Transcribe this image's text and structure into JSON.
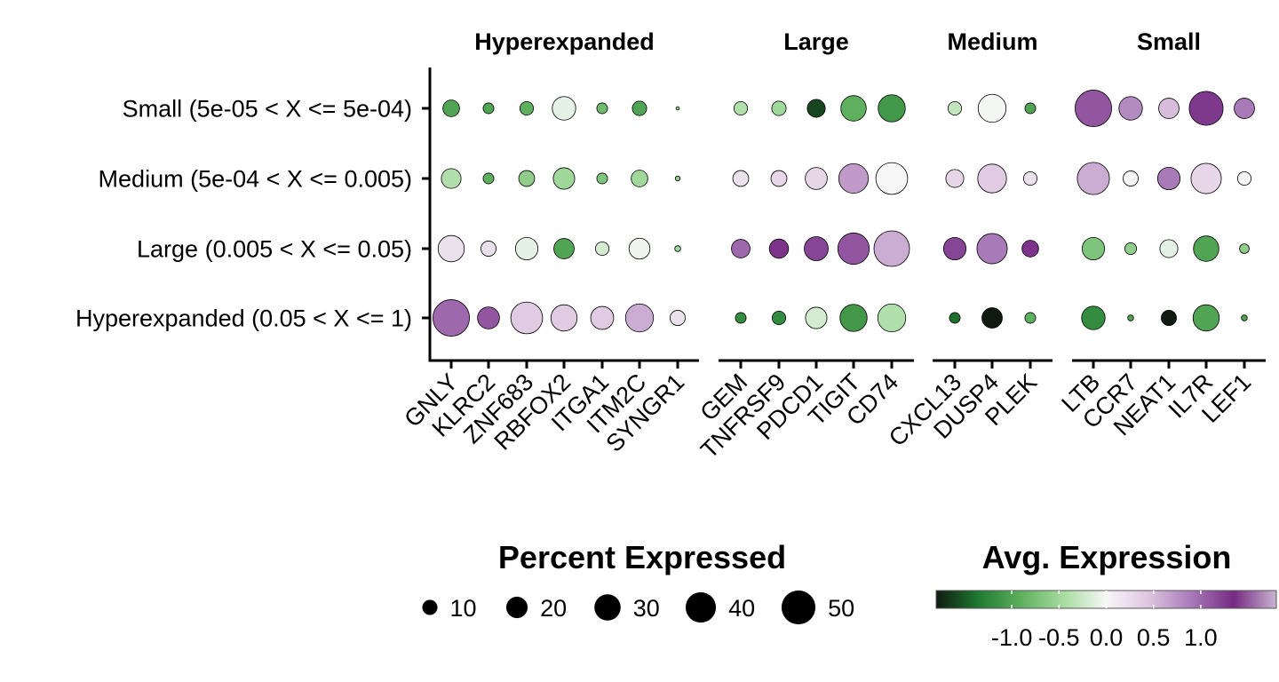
{
  "chart_data": {
    "type": "dotplot",
    "rows": [
      "Small (5e-05 < X <= 5e-04)",
      "Medium (5e-04 < X <= 0.005)",
      "Large (0.005 < X <= 0.05)",
      "Hyperexpanded (0.05 < X <= 1)"
    ],
    "facets": [
      {
        "title": "Hyperexpanded",
        "genes": [
          "GNLY",
          "KLRC2",
          "ZNF683",
          "RBFOX2",
          "ITGA1",
          "ITM2C",
          "SYNGR1"
        ],
        "pct": [
          [
            12,
            5,
            8,
            24,
            5,
            9,
            0.5
          ],
          [
            17,
            5,
            11,
            20,
            5,
            12,
            1
          ],
          [
            30,
            10,
            22,
            18,
            8,
            19,
            1.5
          ],
          [
            58,
            21,
            44,
            30,
            23,
            34,
            10
          ]
        ],
        "avg": [
          [
            -1.0,
            -1.0,
            -0.9,
            -0.1,
            -0.8,
            -1.0,
            -0.6
          ],
          [
            -0.4,
            -0.9,
            -0.6,
            -0.5,
            -0.7,
            -0.5,
            -0.6
          ],
          [
            0.2,
            0.2,
            -0.1,
            -1.0,
            -0.2,
            -0.05,
            -0.5
          ],
          [
            1.0,
            1.1,
            0.4,
            0.4,
            0.4,
            0.6,
            0.2
          ]
        ]
      },
      {
        "title": "Large",
        "genes": [
          "GEM",
          "TNFRSF9",
          "PDCD1",
          "TIGIT",
          "CD74"
        ],
        "pct": [
          [
            8,
            9,
            14,
            28,
            32
          ],
          [
            11,
            11,
            21,
            38,
            44
          ],
          [
            15,
            16,
            25,
            43,
            55
          ],
          [
            5,
            8,
            20,
            32,
            34
          ]
        ],
        "avg": [
          [
            -0.4,
            -0.5,
            -1.6,
            -0.9,
            -1.1
          ],
          [
            0.2,
            0.3,
            0.3,
            0.7,
            0.0
          ],
          [
            1.0,
            1.3,
            1.2,
            1.1,
            0.6
          ],
          [
            -1.2,
            -1.2,
            -0.2,
            -1.1,
            -0.4
          ]
        ]
      },
      {
        "title": "Medium",
        "genes": [
          "CXCL13",
          "DUSP4",
          "PLEK"
        ],
        "pct": [
          [
            8,
            34,
            5
          ],
          [
            14,
            36,
            8
          ],
          [
            22,
            40,
            12
          ],
          [
            5,
            18,
            5
          ]
        ],
        "avg": [
          [
            -0.3,
            -0.02,
            -1.0
          ],
          [
            0.3,
            0.4,
            0.2
          ],
          [
            1.2,
            0.9,
            1.3
          ],
          [
            -1.4,
            -1.8,
            -0.9
          ]
        ]
      },
      {
        "title": "Small",
        "genes": [
          "LTB",
          "CCR7",
          "NEAT1",
          "IL7R",
          "LEF1"
        ],
        "pct": [
          [
            58,
            24,
            18,
            50,
            18
          ],
          [
            45,
            10,
            22,
            40,
            8
          ],
          [
            22,
            6,
            14,
            28,
            4
          ],
          [
            24,
            1.5,
            10,
            30,
            1.5
          ]
        ],
        "avg": [
          [
            1.1,
            0.8,
            0.5,
            1.4,
            0.9
          ],
          [
            0.6,
            0.0,
            0.9,
            0.3,
            0.0
          ],
          [
            -0.7,
            -0.6,
            -0.1,
            -1.0,
            -0.6
          ],
          [
            -1.2,
            -1.0,
            -1.8,
            -1.0,
            -1.0
          ]
        ]
      }
    ],
    "size_legend": {
      "title": "Percent Expressed",
      "breaks": [
        10,
        20,
        30,
        40,
        50
      ]
    },
    "color_legend": {
      "title": "Avg. Expression",
      "range": [
        -1.8,
        1.8
      ],
      "breaks": [
        -1.0,
        -0.5,
        0.0,
        0.5,
        1.0
      ],
      "break_labels": [
        "-1.0",
        "-0.5",
        "0.0",
        "0.5",
        "1.0"
      ],
      "colors": [
        "#101a10",
        "#1f7a31",
        "#5fb05e",
        "#a8dca1",
        "#f7f7f7",
        "#ddc5e0",
        "#a87ab8",
        "#762a83",
        "#c8b4d0"
      ]
    }
  }
}
